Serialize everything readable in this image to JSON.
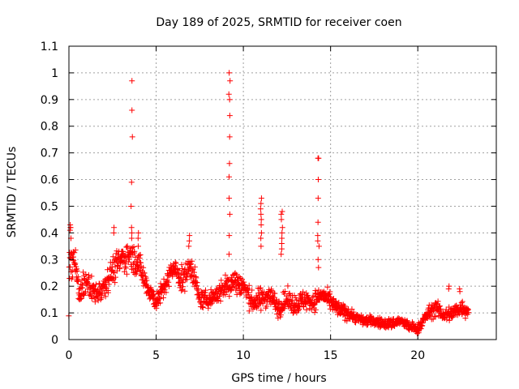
{
  "chart_data": {
    "type": "scatter",
    "title": "Day 189 of 2025, SRMTID for receiver coen",
    "xlabel": "GPS time / hours",
    "ylabel": "SRMTID / TECUs",
    "xlim": [
      0,
      24.5
    ],
    "ylim": [
      0,
      1.1
    ],
    "xticks": [
      0,
      5,
      10,
      15,
      20
    ],
    "xtick_labels": [
      "0",
      "5",
      "10",
      "15",
      "20"
    ],
    "yticks": [
      0,
      0.1,
      0.2,
      0.3,
      0.4,
      0.5,
      0.6,
      0.7,
      0.8,
      0.9,
      1.0,
      1.1
    ],
    "ytick_labels": [
      "0",
      "0.1",
      "0.2",
      "0.3",
      "0.4",
      "0.5",
      "0.6",
      "0.7",
      "0.8",
      "0.9",
      "1",
      "1.1"
    ],
    "grid": true,
    "marker": "+",
    "series": [
      {
        "name": "SRMTID",
        "color": "#ff0000",
        "x_range": [
          0,
          22.9
        ],
        "envelope": {
          "x": [
            0,
            0.3,
            0.6,
            1.0,
            1.5,
            2.0,
            2.5,
            3.0,
            3.5,
            4.0,
            4.5,
            5.0,
            5.5,
            6.0,
            6.5,
            7.0,
            7.5,
            8.0,
            8.5,
            9.0,
            9.5,
            10.0,
            10.5,
            11.0,
            11.5,
            12.0,
            12.5,
            13.0,
            13.5,
            14.0,
            14.5,
            15.0,
            15.5,
            16.0,
            16.5,
            17.0,
            17.5,
            18.0,
            18.5,
            19.0,
            19.5,
            20.0,
            20.5,
            21.0,
            21.5,
            22.0,
            22.5,
            22.9
          ],
          "mean": [
            0.3,
            0.3,
            0.17,
            0.22,
            0.17,
            0.2,
            0.26,
            0.3,
            0.32,
            0.28,
            0.2,
            0.14,
            0.2,
            0.27,
            0.22,
            0.28,
            0.15,
            0.15,
            0.17,
            0.2,
            0.22,
            0.2,
            0.14,
            0.15,
            0.17,
            0.12,
            0.15,
            0.13,
            0.15,
            0.14,
            0.17,
            0.14,
            0.11,
            0.1,
            0.08,
            0.07,
            0.07,
            0.06,
            0.06,
            0.07,
            0.05,
            0.04,
            0.09,
            0.12,
            0.09,
            0.1,
            0.12,
            0.11
          ],
          "spread": [
            0.12,
            0.1,
            0.07,
            0.08,
            0.07,
            0.07,
            0.08,
            0.09,
            0.08,
            0.08,
            0.07,
            0.05,
            0.07,
            0.06,
            0.08,
            0.08,
            0.05,
            0.05,
            0.06,
            0.07,
            0.08,
            0.07,
            0.06,
            0.07,
            0.06,
            0.06,
            0.06,
            0.06,
            0.06,
            0.06,
            0.05,
            0.05,
            0.05,
            0.04,
            0.03,
            0.03,
            0.03,
            0.03,
            0.03,
            0.03,
            0.03,
            0.03,
            0.04,
            0.05,
            0.04,
            0.05,
            0.05,
            0.05
          ]
        },
        "spikes": [
          {
            "x": 0.1,
            "y": [
              0.43,
              0.42,
              0.42,
              0.41,
              0.38
            ]
          },
          {
            "x": 2.6,
            "y": [
              0.42,
              0.4
            ]
          },
          {
            "x": 3.6,
            "y": [
              0.97,
              0.86,
              0.76,
              0.59,
              0.5,
              0.42,
              0.4,
              0.38
            ]
          },
          {
            "x": 4.0,
            "y": [
              0.4,
              0.38,
              0.35
            ]
          },
          {
            "x": 6.9,
            "y": [
              0.39,
              0.37,
              0.35
            ]
          },
          {
            "x": 9.2,
            "y": [
              1.0,
              0.97,
              0.92,
              0.9,
              0.84,
              0.76,
              0.66,
              0.61,
              0.53,
              0.47,
              0.39,
              0.32
            ]
          },
          {
            "x": 11.0,
            "y": [
              0.53,
              0.51,
              0.49,
              0.47,
              0.45,
              0.43,
              0.4,
              0.38,
              0.35
            ]
          },
          {
            "x": 12.2,
            "y": [
              0.48,
              0.47,
              0.45,
              0.42,
              0.4,
              0.38,
              0.36,
              0.34,
              0.32
            ]
          },
          {
            "x": 14.3,
            "y": [
              0.68,
              0.68,
              0.6,
              0.53,
              0.44,
              0.39,
              0.37,
              0.35,
              0.3,
              0.27
            ]
          },
          {
            "x": 21.8,
            "y": [
              0.2,
              0.19
            ]
          },
          {
            "x": 22.4,
            "y": [
              0.19,
              0.18
            ]
          }
        ]
      }
    ]
  }
}
